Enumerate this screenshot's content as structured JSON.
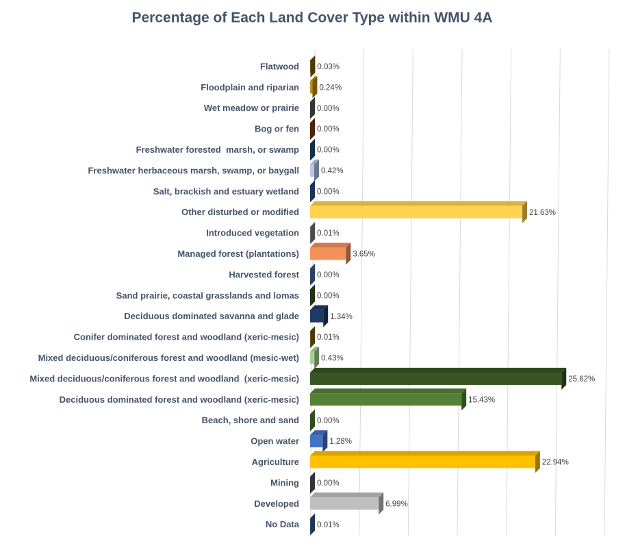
{
  "chart_data": {
    "type": "bar",
    "orientation": "horizontal",
    "title": "Percentage of Each Land Cover Type within WMU 4A",
    "categories": [
      "Flatwood",
      "Floodplain and riparian",
      "Wet meadow or prairie",
      "Bog or fen",
      "Freshwater forested  marsh, or swamp",
      "Freshwater herbaceous marsh, swamp, or baygall",
      "Salt, brackish and estuary wetland",
      "Other disturbed or modified",
      "Introduced vegetation",
      "Managed forest (plantations)",
      "Harvested forest",
      "Sand prairie, coastal grasslands and lomas",
      "Deciduous dominated savanna and glade",
      "Conifer dominated forest and woodland (xeric-mesic)",
      "Mixed deciduous/coniferous forest and woodland (mesic-wet)",
      "Mixed deciduous/coniferous forest and woodland  (xeric-mesic)",
      "Deciduous dominated forest and woodland (xeric-mesic)",
      "Beach, shore and sand",
      "Open water",
      "Agriculture",
      "Mining",
      "Developed",
      "No Data"
    ],
    "values": [
      0.03,
      0.24,
      0.0,
      0.0,
      0.0,
      0.42,
      0.0,
      21.63,
      0.01,
      3.65,
      0.0,
      0.0,
      1.34,
      0.01,
      0.43,
      25.62,
      15.43,
      0.0,
      1.28,
      22.94,
      0.0,
      6.99,
      0.01
    ],
    "value_labels": [
      "0.03%",
      "0.24%",
      "0.00%",
      "0.00%",
      "0.00%",
      "0.42%",
      "0.00%",
      "21.63%",
      "0.01%",
      "3.65%",
      "0.00%",
      "0.00%",
      "1.34%",
      "0.01%",
      "0.43%",
      "25.62%",
      "15.43%",
      "0.00%",
      "1.28%",
      "22.94%",
      "0.00%",
      "6.99%",
      "0.01%"
    ],
    "colors": [
      "#7f6000",
      "#bf9000",
      "#595959",
      "#843c0c",
      "#1f4e79",
      "#b4c7e7",
      "#2f5597",
      "#ffd34d",
      "#7f7f7f",
      "#f4915a",
      "#4a6fa5",
      "#375623",
      "#203864",
      "#7f6000",
      "#a9d18e",
      "#375623",
      "#548235",
      "#548235",
      "#4472c4",
      "#ffc000",
      "#595959",
      "#bfbfbf",
      "#2e5c8a"
    ],
    "xlim": [
      0,
      30
    ],
    "xticks": [
      0,
      5,
      10,
      15,
      20,
      25,
      30
    ],
    "grid": true
  }
}
